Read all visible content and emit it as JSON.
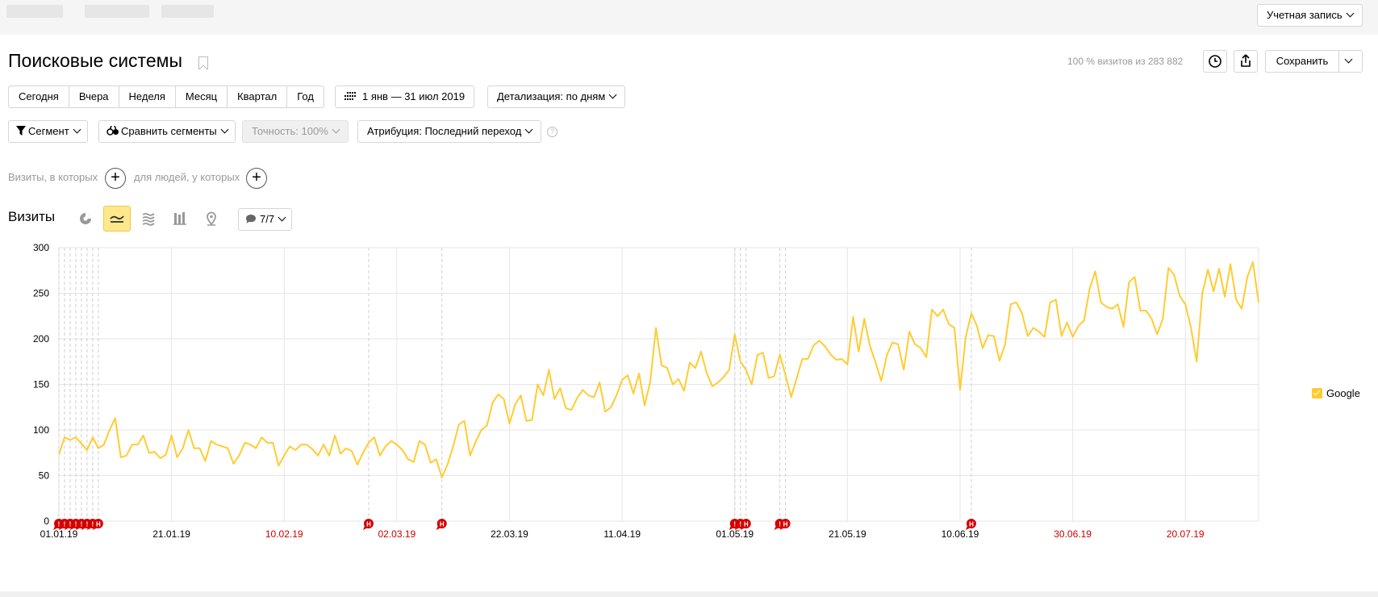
{
  "header": {
    "account_label": "Учетная запись"
  },
  "page": {
    "title": "Поисковые системы",
    "visits_stat": "100 % визитов из 283 882",
    "save_label": "Сохранить"
  },
  "periods": [
    "Сегодня",
    "Вчера",
    "Неделя",
    "Месяц",
    "Квартал",
    "Год"
  ],
  "date_range": "1 янв — 31 июл 2019",
  "detail": "Детализация: по дням",
  "filters": {
    "segment": "Сегмент",
    "compare": "Сравнить сегменты",
    "accuracy": "Точность: 100%",
    "attribution": "Атрибуция: Последний переход"
  },
  "conditions": {
    "visits_where": "Визиты, в которых",
    "people_where": "для людей, у которых"
  },
  "chart_section": {
    "title": "Визиты",
    "notes_badge": "7/7"
  },
  "colors": {
    "line": "#ffcc33",
    "holiday": "#cc0000",
    "marker": "#d40000"
  },
  "chart_data": {
    "type": "line",
    "ylim": [
      0,
      300
    ],
    "yticks": [
      0,
      50,
      100,
      150,
      200,
      250,
      300
    ],
    "xticks": [
      {
        "label": "01.01.19",
        "day": 0,
        "holiday": false
      },
      {
        "label": "21.01.19",
        "day": 20,
        "holiday": false
      },
      {
        "label": "10.02.19",
        "day": 40,
        "holiday": true
      },
      {
        "label": "02.03.19",
        "day": 60,
        "holiday": true
      },
      {
        "label": "22.03.19",
        "day": 80,
        "holiday": false
      },
      {
        "label": "11.04.19",
        "day": 100,
        "holiday": false
      },
      {
        "label": "01.05.19",
        "day": 120,
        "holiday": false
      },
      {
        "label": "21.05.19",
        "day": 140,
        "holiday": false
      },
      {
        "label": "10.06.19",
        "day": 160,
        "holiday": false
      },
      {
        "label": "30.06.19",
        "day": 180,
        "holiday": true
      },
      {
        "label": "20.07.19",
        "day": 200,
        "holiday": true
      }
    ],
    "grid": true,
    "legend_position": "right",
    "series": [
      {
        "name": "Google",
        "values": [
          73,
          92,
          89,
          92,
          85,
          78,
          92,
          80,
          84,
          100,
          113,
          70,
          72,
          84,
          84,
          94,
          75,
          76,
          69,
          73,
          94,
          70,
          80,
          100,
          80,
          80,
          66,
          88,
          84,
          82,
          80,
          63,
          72,
          86,
          84,
          80,
          92,
          86,
          86,
          61,
          72,
          82,
          78,
          84,
          84,
          79,
          72,
          84,
          72,
          94,
          74,
          80,
          77,
          62,
          75,
          86,
          92,
          72,
          82,
          88,
          84,
          78,
          68,
          65,
          88,
          84,
          64,
          68,
          48,
          62,
          82,
          106,
          110,
          72,
          87,
          100,
          105,
          130,
          139,
          134,
          107,
          128,
          138,
          110,
          111,
          150,
          138,
          166,
          134,
          146,
          124,
          122,
          135,
          144,
          138,
          136,
          152,
          120,
          125,
          138,
          155,
          160,
          140,
          162,
          127,
          153,
          212,
          171,
          168,
          150,
          156,
          143,
          174,
          168,
          186,
          163,
          148,
          152,
          158,
          166,
          205,
          175,
          166,
          150,
          182,
          185,
          157,
          159,
          183,
          160,
          136,
          157,
          178,
          178,
          193,
          198,
          192,
          183,
          177,
          178,
          172,
          224,
          186,
          222,
          192,
          174,
          154,
          182,
          196,
          194,
          166,
          208,
          194,
          190,
          180,
          232,
          225,
          232,
          216,
          212,
          144,
          202,
          228,
          214,
          190,
          204,
          203,
          176,
          194,
          238,
          240,
          228,
          203,
          212,
          208,
          202,
          240,
          243,
          203,
          218,
          202,
          214,
          220,
          255,
          274,
          240,
          235,
          233,
          238,
          213,
          262,
          268,
          231,
          231,
          222,
          205,
          222,
          278,
          270,
          247,
          238,
          212,
          175,
          250,
          276,
          252,
          277,
          246,
          282,
          243,
          233,
          268,
          284,
          240
        ]
      }
    ],
    "note_markers": [
      {
        "day": 0,
        "label": "!"
      },
      {
        "day": 1,
        "label": "!"
      },
      {
        "day": 2,
        "label": "!"
      },
      {
        "day": 3,
        "label": "!"
      },
      {
        "day": 4,
        "label": "!"
      },
      {
        "day": 5,
        "label": "!"
      },
      {
        "day": 6,
        "label": "!"
      },
      {
        "day": 7,
        "label": "H"
      },
      {
        "day": 55,
        "label": "H"
      },
      {
        "day": 68,
        "label": "H"
      },
      {
        "day": 120,
        "label": "!"
      },
      {
        "day": 121,
        "label": "!"
      },
      {
        "day": 122,
        "label": "H"
      },
      {
        "day": 128,
        "label": "!"
      },
      {
        "day": 129,
        "label": "H"
      },
      {
        "day": 162,
        "label": "H"
      }
    ]
  }
}
